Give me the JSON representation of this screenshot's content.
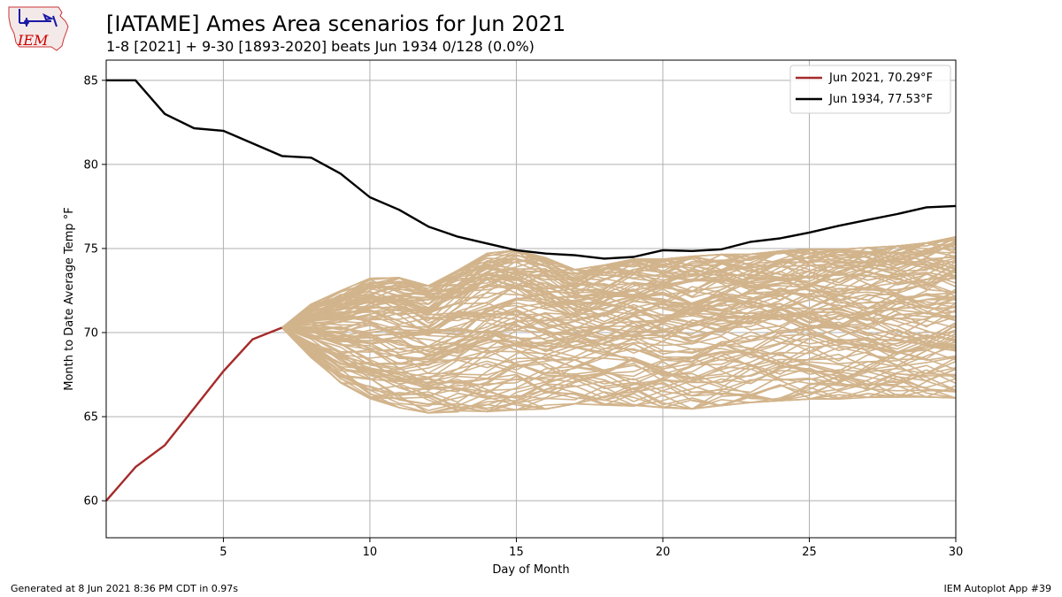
{
  "header": {
    "logo_text": "IEM",
    "title": "[IATAME] Ames Area scenarios for Jun 2021",
    "subtitle": "1-8 [2021] + 9-30 [1893-2020] beats Jun 1934 0/128 (0.0%)"
  },
  "footer": {
    "left": "Generated at 8 Jun 2021 8:36 PM CDT in 0.97s",
    "right": "IEM Autoplot App #39"
  },
  "colors": {
    "current": "#a52a2a",
    "record": "#000000",
    "scenario": "#d2b48c",
    "grid": "#b0b0b0",
    "logo": "#cc0000"
  },
  "chart_data": {
    "type": "line",
    "title": "[IATAME] Ames Area scenarios for Jun 2021",
    "xlabel": "Day of Month",
    "ylabel": "Month to Date Average Temp °F",
    "xlim": [
      1,
      30
    ],
    "ylim": [
      57.8,
      86.2
    ],
    "xticks": [
      5,
      10,
      15,
      20,
      25,
      30
    ],
    "yticks": [
      60,
      65,
      70,
      75,
      80,
      85
    ],
    "grid": true,
    "legend_position": "top-right",
    "scenario_count": 128,
    "series": [
      {
        "name": "Jun 2021, 70.29°F",
        "x": [
          1,
          2,
          3,
          4,
          5,
          6,
          7
        ],
        "y": [
          60.0,
          62.0,
          63.3,
          65.5,
          67.7,
          69.6,
          70.29
        ]
      },
      {
        "name": "Jun 1934, 77.53°F",
        "x": [
          1,
          2,
          3,
          4,
          5,
          6,
          7,
          8,
          9,
          10,
          11,
          12,
          13,
          14,
          15,
          16,
          17,
          18,
          19,
          20,
          21,
          22,
          23,
          24,
          25,
          26,
          27,
          28,
          29,
          30
        ],
        "y": [
          85.0,
          85.0,
          83.0,
          82.15,
          82.0,
          81.25,
          80.5,
          80.4,
          79.45,
          78.05,
          77.3,
          76.3,
          75.7,
          75.3,
          74.9,
          74.7,
          74.6,
          74.4,
          74.5,
          74.9,
          74.85,
          74.95,
          75.4,
          75.6,
          75.95,
          76.35,
          76.7,
          77.05,
          77.45,
          77.53
        ]
      }
    ],
    "scenarios_envelope": {
      "x": [
        7,
        8,
        9,
        10,
        11,
        12,
        13,
        14,
        15,
        16,
        17,
        18,
        19,
        20,
        21,
        22,
        23,
        24,
        25,
        26,
        27,
        28,
        29,
        30
      ],
      "min": [
        70.29,
        68.2,
        66.5,
        65.4,
        64.8,
        64.5,
        64.4,
        64.4,
        64.5,
        64.6,
        65.0,
        64.9,
        64.8,
        64.7,
        64.6,
        64.8,
        65.0,
        65.1,
        65.2,
        65.2,
        65.3,
        65.3,
        65.3,
        65.2
      ],
      "max": [
        70.29,
        72.0,
        73.0,
        73.9,
        74.0,
        73.5,
        74.5,
        75.6,
        75.8,
        75.3,
        74.5,
        74.8,
        75.2,
        75.2,
        75.4,
        75.5,
        75.5,
        75.7,
        75.8,
        75.8,
        75.9,
        76.0,
        76.2,
        76.6
      ]
    }
  }
}
